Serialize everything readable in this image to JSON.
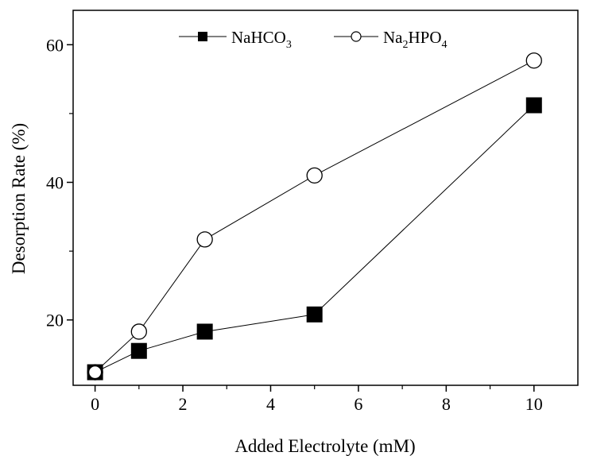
{
  "chart_data": {
    "type": "line",
    "xlabel": "Added Electrolyte (mM)",
    "ylabel": "Desorption Rate (%)",
    "xlim": [
      -0.5,
      11
    ],
    "ylim": [
      10.5,
      65
    ],
    "xticks": [
      0,
      2,
      4,
      6,
      8,
      10
    ],
    "yticks": [
      20,
      40,
      60
    ],
    "yminor": [
      30,
      50
    ],
    "grid": false,
    "legend_position": "top",
    "series": [
      {
        "name": "NaHCO3",
        "name_parts": {
          "main": "NaHCO",
          "sub": "3",
          "tail": ""
        },
        "marker": "filled-square",
        "color": "#000000",
        "x": [
          0,
          1,
          2.5,
          5,
          10
        ],
        "values": [
          12.4,
          15.5,
          18.3,
          20.8,
          51.2
        ]
      },
      {
        "name": "Na2HPO4",
        "name_parts": {
          "main": "Na",
          "sub": "2",
          "tail": "HPO",
          "sub2": "4"
        },
        "marker": "open-circle",
        "color": "#000000",
        "x": [
          0,
          1,
          2.5,
          5,
          10
        ],
        "values": [
          12.4,
          18.3,
          31.7,
          41.0,
          57.7
        ]
      }
    ]
  }
}
